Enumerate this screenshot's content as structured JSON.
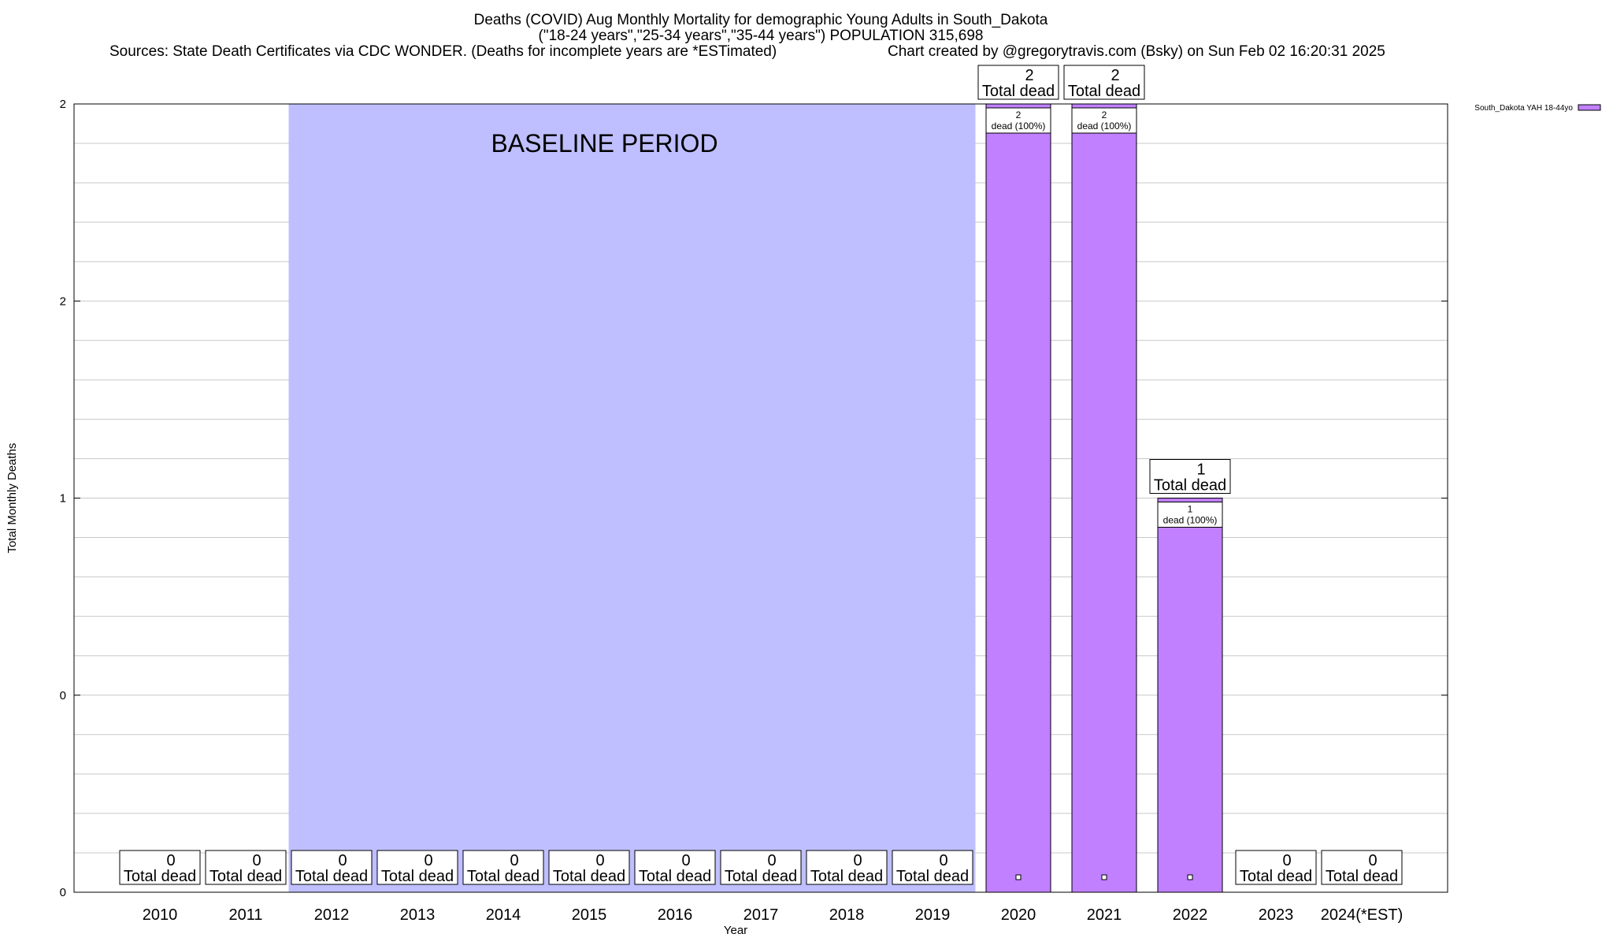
{
  "title": {
    "line1": "Deaths (COVID) Aug Monthly Mortality for demographic Young Adults in South_Dakota",
    "line2": "(\"18-24 years\",\"25-34 years\",\"35-44 years\") POPULATION 315,698",
    "line3_left": "Sources: State Death Certificates via CDC WONDER. (Deaths for incomplete years are *ESTimated)",
    "line3_right": "Chart created by @gregorytravis.com (Bsky) on Sun Feb 02 16:20:31 2025"
  },
  "chart_data": {
    "type": "bar",
    "xlabel": "Year",
    "ylabel": "Total Monthly Deaths",
    "ylim": [
      0,
      2
    ],
    "y_tick_labels": [
      "0",
      "0",
      "1",
      "2",
      "2"
    ],
    "categories": [
      "2010",
      "2011",
      "2012",
      "2013",
      "2014",
      "2015",
      "2016",
      "2017",
      "2018",
      "2019",
      "2020",
      "2021",
      "2022",
      "2023",
      "2024(*EST)"
    ],
    "series": [
      {
        "name": "South_Dakota YAH 18-44yo",
        "color": "#c080ff",
        "values": [
          0,
          0,
          0,
          0,
          0,
          0,
          0,
          0,
          0,
          0,
          2,
          2,
          1,
          0,
          0
        ]
      }
    ],
    "total_labels": [
      "0",
      "0",
      "0",
      "0",
      "0",
      "0",
      "0",
      "0",
      "0",
      "0",
      "2",
      "2",
      "1",
      "0",
      "0"
    ],
    "total_suffix": "Total dead",
    "segment_labels": [
      {
        "index": 10,
        "count": "2",
        "text": "dead (100%)"
      },
      {
        "index": 11,
        "count": "2",
        "text": "dead (100%)"
      },
      {
        "index": 12,
        "count": "1",
        "text": "dead (100%)"
      }
    ],
    "baseline_region": {
      "label": "BASELINE PERIOD",
      "from": "2012",
      "to": "2019",
      "color": "#bfbfff"
    },
    "grid": true,
    "legend_position": "top-right"
  }
}
